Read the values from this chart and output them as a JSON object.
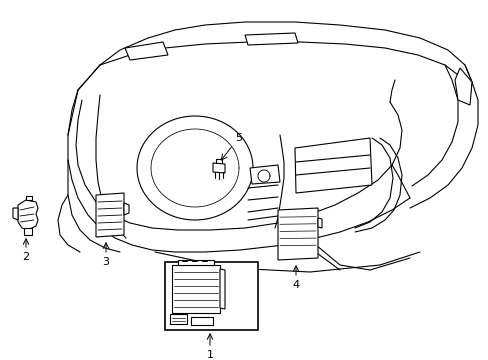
{
  "background_color": "#ffffff",
  "line_color": "#000000",
  "line_width": 0.8,
  "label_fontsize": 8,
  "figsize": [
    4.89,
    3.6
  ],
  "dpi": 100
}
